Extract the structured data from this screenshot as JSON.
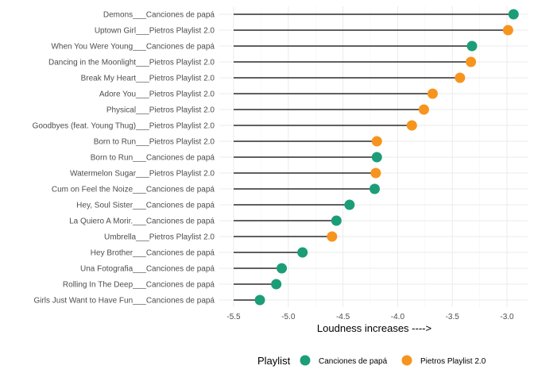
{
  "chart_data": {
    "type": "lollipop",
    "xlabel": "Loudness increases ---->",
    "xlim": [
      -5.55,
      -2.9
    ],
    "xticks": [
      -5.5,
      -5.0,
      -4.5,
      -4.0,
      -3.5,
      -3.0
    ],
    "xtick_labels": [
      "-5.5",
      "-5.0",
      "-4.5",
      "-4.0",
      "-3.5",
      "-3.0"
    ],
    "grid": true,
    "legend": {
      "title": "Playlist",
      "position": "bottom",
      "entries": [
        {
          "name": "Canciones de papá",
          "color": "#1b9e77"
        },
        {
          "name": "Pietros Playlist 2.0",
          "color": "#f7941d"
        }
      ]
    },
    "baseline": -5.5,
    "points": [
      {
        "label": "Demons___Canciones de papá",
        "value": -2.94,
        "playlist": "Canciones de papá"
      },
      {
        "label": "Uptown Girl___Pietros Playlist 2.0",
        "value": -2.99,
        "playlist": "Pietros Playlist 2.0"
      },
      {
        "label": "When You Were Young___Canciones de papá",
        "value": -3.32,
        "playlist": "Canciones de papá"
      },
      {
        "label": "Dancing in the Moonlight___Pietros Playlist 2.0",
        "value": -3.33,
        "playlist": "Pietros Playlist 2.0"
      },
      {
        "label": "Break My Heart___Pietros Playlist 2.0",
        "value": -3.43,
        "playlist": "Pietros Playlist 2.0"
      },
      {
        "label": "Adore You___Pietros Playlist 2.0",
        "value": -3.68,
        "playlist": "Pietros Playlist 2.0"
      },
      {
        "label": "Physical___Pietros Playlist 2.0",
        "value": -3.76,
        "playlist": "Pietros Playlist 2.0"
      },
      {
        "label": "Goodbyes (feat. Young Thug)___Pietros Playlist 2.0",
        "value": -3.87,
        "playlist": "Pietros Playlist 2.0"
      },
      {
        "label": "Born to Run___Pietros Playlist 2.0",
        "value": -4.19,
        "playlist": "Pietros Playlist 2.0"
      },
      {
        "label": "Born to Run___Canciones de papá",
        "value": -4.19,
        "playlist": "Canciones de papá"
      },
      {
        "label": "Watermelon Sugar___Pietros Playlist 2.0",
        "value": -4.2,
        "playlist": "Pietros Playlist 2.0"
      },
      {
        "label": "Cum on Feel the Noize___Canciones de papá",
        "value": -4.21,
        "playlist": "Canciones de papá"
      },
      {
        "label": "Hey, Soul Sister___Canciones de papá",
        "value": -4.44,
        "playlist": "Canciones de papá"
      },
      {
        "label": "La Quiero A Morir.___Canciones de papá",
        "value": -4.56,
        "playlist": "Canciones de papá"
      },
      {
        "label": "Umbrella___Pietros Playlist 2.0",
        "value": -4.6,
        "playlist": "Pietros Playlist 2.0"
      },
      {
        "label": "Hey Brother___Canciones de papá",
        "value": -4.87,
        "playlist": "Canciones de papá"
      },
      {
        "label": "Una Fotografia___Canciones de papá",
        "value": -5.06,
        "playlist": "Canciones de papá"
      },
      {
        "label": "Rolling In The Deep___Canciones de papá",
        "value": -5.11,
        "playlist": "Canciones de papá"
      },
      {
        "label": "Girls Just Want to Have Fun___Canciones de papá",
        "value": -5.26,
        "playlist": "Canciones de papá"
      }
    ]
  }
}
